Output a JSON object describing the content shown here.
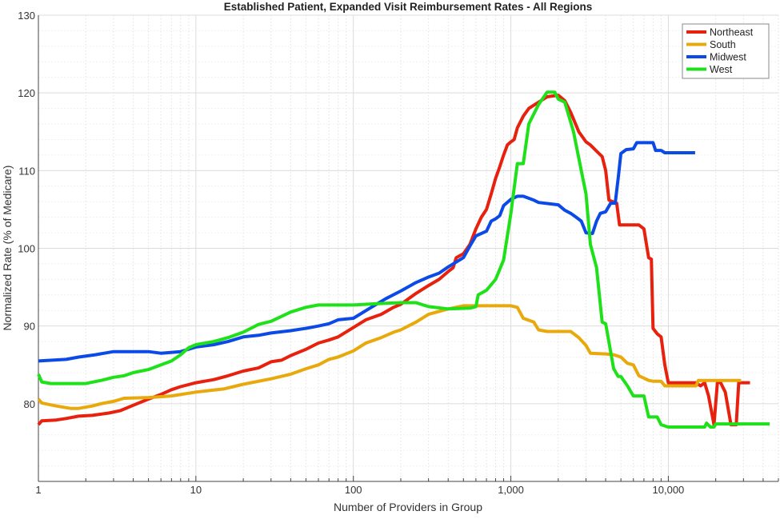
{
  "chart_data": {
    "type": "line",
    "title": "Established Patient, Expanded Visit Reimbursement Rates - All Regions",
    "xlabel": "Number of Providers in Group",
    "ylabel": "Normalized Rate (% of Medicare)",
    "x_scale": "log",
    "xlim": [
      1,
      50000
    ],
    "ylim": [
      70,
      130
    ],
    "x_ticks": [
      1,
      10,
      100,
      1000,
      10000
    ],
    "x_tick_labels": [
      "1",
      "10",
      "100",
      "1,000",
      "10,000"
    ],
    "y_ticks": [
      80,
      90,
      100,
      110,
      120,
      130
    ],
    "y_tick_labels": [
      "80",
      "90",
      "100",
      "110",
      "120",
      "130"
    ],
    "grid": true,
    "legend_position": "top-right",
    "series": [
      {
        "name": "Northeast",
        "color": "#e8210e",
        "points": [
          [
            1,
            77.3
          ],
          [
            1.05,
            77.8
          ],
          [
            1.3,
            77.9
          ],
          [
            1.5,
            78.1
          ],
          [
            1.8,
            78.4
          ],
          [
            2.2,
            78.5
          ],
          [
            2.8,
            78.8
          ],
          [
            3.3,
            79.1
          ],
          [
            4,
            79.8
          ],
          [
            5,
            80.6
          ],
          [
            6,
            81.2
          ],
          [
            7,
            81.8
          ],
          [
            8,
            82.2
          ],
          [
            10,
            82.7
          ],
          [
            13,
            83.1
          ],
          [
            16,
            83.6
          ],
          [
            20,
            84.2
          ],
          [
            25,
            84.6
          ],
          [
            30,
            85.4
          ],
          [
            35,
            85.6
          ],
          [
            40,
            86.2
          ],
          [
            50,
            87
          ],
          [
            60,
            87.8
          ],
          [
            70,
            88.2
          ],
          [
            80,
            88.6
          ],
          [
            100,
            89.8
          ],
          [
            120,
            90.8
          ],
          [
            150,
            91.5
          ],
          [
            180,
            92.4
          ],
          [
            200,
            92.8
          ],
          [
            250,
            94.2
          ],
          [
            300,
            95.2
          ],
          [
            350,
            96
          ],
          [
            400,
            97
          ],
          [
            430,
            97.5
          ],
          [
            450,
            98.8
          ],
          [
            500,
            99.3
          ],
          [
            550,
            100.5
          ],
          [
            600,
            102.5
          ],
          [
            650,
            104
          ],
          [
            700,
            105
          ],
          [
            750,
            107
          ],
          [
            800,
            109
          ],
          [
            850,
            110.5
          ],
          [
            900,
            112
          ],
          [
            950,
            113.3
          ],
          [
            1000,
            113.7
          ],
          [
            1050,
            114
          ],
          [
            1100,
            115.5
          ],
          [
            1200,
            117
          ],
          [
            1300,
            118
          ],
          [
            1500,
            118.8
          ],
          [
            1700,
            119.5
          ],
          [
            2000,
            119.7
          ],
          [
            2200,
            119
          ],
          [
            2400,
            117.5
          ],
          [
            2700,
            115
          ],
          [
            3000,
            113.7
          ],
          [
            3200,
            113.3
          ],
          [
            3500,
            112.5
          ],
          [
            3800,
            111.8
          ],
          [
            4000,
            110
          ],
          [
            4200,
            106.2
          ],
          [
            4700,
            105.8
          ],
          [
            4900,
            103
          ],
          [
            6500,
            103
          ],
          [
            7000,
            102.5
          ],
          [
            7500,
            98.8
          ],
          [
            7800,
            98.6
          ],
          [
            8000,
            89.7
          ],
          [
            8500,
            89
          ],
          [
            9000,
            88.6
          ],
          [
            9500,
            85
          ],
          [
            10000,
            82.7
          ],
          [
            15000,
            82.7
          ],
          [
            16000,
            82.3
          ],
          [
            17000,
            82.7
          ],
          [
            18000,
            81
          ],
          [
            19500,
            77.3
          ],
          [
            20500,
            82.8
          ],
          [
            21500,
            82.7
          ],
          [
            23000,
            81.5
          ],
          [
            25000,
            77.3
          ],
          [
            27000,
            77.3
          ],
          [
            28000,
            82.7
          ],
          [
            33000,
            82.7
          ]
        ]
      },
      {
        "name": "South",
        "color": "#e8a90c",
        "points": [
          [
            1,
            80.6
          ],
          [
            1.05,
            80.1
          ],
          [
            1.3,
            79.7
          ],
          [
            1.6,
            79.4
          ],
          [
            1.8,
            79.4
          ],
          [
            2.2,
            79.7
          ],
          [
            2.5,
            80
          ],
          [
            3,
            80.3
          ],
          [
            3.5,
            80.7
          ],
          [
            5,
            80.8
          ],
          [
            7,
            81
          ],
          [
            10,
            81.5
          ],
          [
            15,
            81.9
          ],
          [
            20,
            82.5
          ],
          [
            30,
            83.2
          ],
          [
            40,
            83.8
          ],
          [
            50,
            84.5
          ],
          [
            60,
            85
          ],
          [
            70,
            85.7
          ],
          [
            80,
            86
          ],
          [
            100,
            86.8
          ],
          [
            120,
            87.8
          ],
          [
            150,
            88.5
          ],
          [
            180,
            89.2
          ],
          [
            200,
            89.5
          ],
          [
            250,
            90.5
          ],
          [
            300,
            91.5
          ],
          [
            400,
            92.2
          ],
          [
            500,
            92.6
          ],
          [
            1000,
            92.6
          ],
          [
            1100,
            92.4
          ],
          [
            1200,
            91
          ],
          [
            1400,
            90.5
          ],
          [
            1500,
            89.5
          ],
          [
            1700,
            89.3
          ],
          [
            2400,
            89.3
          ],
          [
            2700,
            88.5
          ],
          [
            3000,
            87.5
          ],
          [
            3200,
            86.5
          ],
          [
            4000,
            86.4
          ],
          [
            4500,
            86.3
          ],
          [
            5000,
            86
          ],
          [
            5500,
            85.2
          ],
          [
            6000,
            85
          ],
          [
            6500,
            83.6
          ],
          [
            7000,
            83.3
          ],
          [
            7500,
            83
          ],
          [
            8000,
            82.9
          ],
          [
            9000,
            82.9
          ],
          [
            9500,
            82.3
          ],
          [
            15000,
            82.3
          ],
          [
            15500,
            83
          ],
          [
            29000,
            83
          ]
        ]
      },
      {
        "name": "Midwest",
        "color": "#0c4ae8",
        "points": [
          [
            1,
            85.5
          ],
          [
            1.5,
            85.7
          ],
          [
            1.8,
            86
          ],
          [
            2.3,
            86.3
          ],
          [
            3,
            86.7
          ],
          [
            5,
            86.7
          ],
          [
            6,
            86.5
          ],
          [
            8,
            86.7
          ],
          [
            10,
            87.3
          ],
          [
            13,
            87.6
          ],
          [
            16,
            88
          ],
          [
            20,
            88.6
          ],
          [
            25,
            88.8
          ],
          [
            30,
            89.1
          ],
          [
            40,
            89.4
          ],
          [
            50,
            89.7
          ],
          [
            60,
            90
          ],
          [
            70,
            90.3
          ],
          [
            80,
            90.8
          ],
          [
            100,
            91
          ],
          [
            130,
            92.4
          ],
          [
            160,
            93.5
          ],
          [
            200,
            94.5
          ],
          [
            250,
            95.6
          ],
          [
            300,
            96.3
          ],
          [
            350,
            96.8
          ],
          [
            400,
            97.6
          ],
          [
            500,
            98.8
          ],
          [
            550,
            100.3
          ],
          [
            600,
            101.6
          ],
          [
            700,
            102.2
          ],
          [
            750,
            103.5
          ],
          [
            800,
            103.8
          ],
          [
            850,
            104.2
          ],
          [
            900,
            105.5
          ],
          [
            1000,
            106.3
          ],
          [
            1100,
            106.7
          ],
          [
            1200,
            106.7
          ],
          [
            1400,
            106.2
          ],
          [
            1500,
            105.9
          ],
          [
            2000,
            105.6
          ],
          [
            2200,
            104.9
          ],
          [
            2400,
            104.5
          ],
          [
            2600,
            104
          ],
          [
            2800,
            103.5
          ],
          [
            3000,
            102
          ],
          [
            3300,
            101.9
          ],
          [
            3500,
            103.5
          ],
          [
            3700,
            104.5
          ],
          [
            4000,
            104.7
          ],
          [
            4300,
            105.8
          ],
          [
            4600,
            105.8
          ],
          [
            4800,
            109
          ],
          [
            5000,
            112.2
          ],
          [
            5400,
            112.7
          ],
          [
            6000,
            112.8
          ],
          [
            6300,
            113.6
          ],
          [
            8000,
            113.6
          ],
          [
            8300,
            112.6
          ],
          [
            9000,
            112.6
          ],
          [
            9500,
            112.3
          ],
          [
            14800,
            112.3
          ]
        ]
      },
      {
        "name": "West",
        "color": "#1ee11a",
        "points": [
          [
            1,
            83.8
          ],
          [
            1.05,
            82.8
          ],
          [
            1.2,
            82.6
          ],
          [
            2,
            82.6
          ],
          [
            2.5,
            83
          ],
          [
            3,
            83.4
          ],
          [
            3.5,
            83.6
          ],
          [
            4,
            84
          ],
          [
            5,
            84.4
          ],
          [
            6,
            85
          ],
          [
            7,
            85.5
          ],
          [
            8,
            86.3
          ],
          [
            9,
            87.2
          ],
          [
            10,
            87.6
          ],
          [
            13,
            88
          ],
          [
            16,
            88.5
          ],
          [
            20,
            89.2
          ],
          [
            25,
            90.2
          ],
          [
            30,
            90.6
          ],
          [
            40,
            91.8
          ],
          [
            50,
            92.4
          ],
          [
            60,
            92.7
          ],
          [
            100,
            92.7
          ],
          [
            150,
            92.9
          ],
          [
            200,
            93
          ],
          [
            250,
            93
          ],
          [
            300,
            92.5
          ],
          [
            400,
            92.2
          ],
          [
            550,
            92.3
          ],
          [
            600,
            92.5
          ],
          [
            620,
            94
          ],
          [
            700,
            94.6
          ],
          [
            800,
            96
          ],
          [
            900,
            98.5
          ],
          [
            1000,
            104.5
          ],
          [
            1100,
            110.9
          ],
          [
            1200,
            110.9
          ],
          [
            1300,
            116
          ],
          [
            1500,
            118.5
          ],
          [
            1700,
            120.1
          ],
          [
            1900,
            120.1
          ],
          [
            2000,
            119.2
          ],
          [
            2200,
            118.8
          ],
          [
            2500,
            115
          ],
          [
            2800,
            110
          ],
          [
            3000,
            107
          ],
          [
            3200,
            100.5
          ],
          [
            3500,
            97.5
          ],
          [
            3800,
            90.5
          ],
          [
            4000,
            90.3
          ],
          [
            4500,
            84.5
          ],
          [
            4800,
            83.5
          ],
          [
            5000,
            83.5
          ],
          [
            5500,
            82.3
          ],
          [
            6000,
            81
          ],
          [
            7000,
            81
          ],
          [
            7500,
            78.3
          ],
          [
            8500,
            78.3
          ],
          [
            9000,
            77.3
          ],
          [
            10000,
            77
          ],
          [
            17000,
            77
          ],
          [
            17500,
            77.5
          ],
          [
            18500,
            77
          ],
          [
            19500,
            77
          ],
          [
            20000,
            77.4
          ],
          [
            44000,
            77.4
          ]
        ]
      }
    ]
  }
}
